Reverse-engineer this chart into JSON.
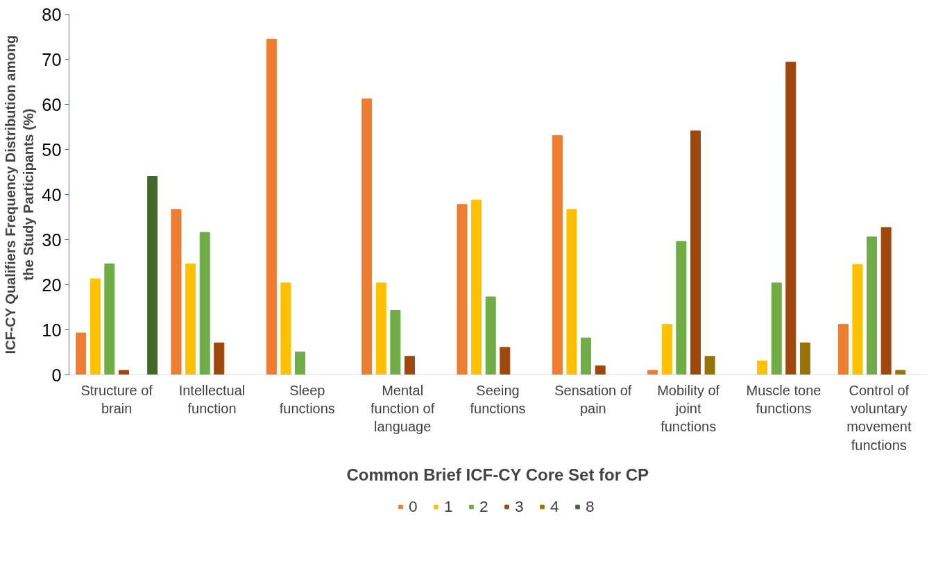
{
  "chart_data": {
    "type": "bar",
    "xlabel": "Common Brief ICF-CY Core Set for CP",
    "ylabel": "ICF-CY Qualifiers Frequency Distribution among the Study Participants (%)",
    "categories": [
      "Structure of brain",
      "Intellectual function",
      "Sleep functions",
      "Mental function of language",
      "Seeing functions",
      "Sensation of pain",
      "Mobility of joint functions",
      "Muscle tone functions",
      "Control of voluntary movement functions"
    ],
    "series": [
      {
        "name": "0",
        "color": "#ed7d31",
        "values": [
          9.3,
          36.7,
          74.5,
          61.2,
          37.8,
          53.1,
          1.0,
          null,
          11.2
        ]
      },
      {
        "name": "1",
        "color": "#ffc000",
        "values": [
          21.3,
          24.6,
          20.4,
          20.4,
          38.8,
          36.7,
          11.2,
          3.1,
          24.5
        ]
      },
      {
        "name": "2",
        "color": "#70ad47",
        "values": [
          24.6,
          31.6,
          5.1,
          14.3,
          17.3,
          8.2,
          29.6,
          20.4,
          30.6
        ]
      },
      {
        "name": "3",
        "color": "#9e480e",
        "values": [
          1.0,
          7.1,
          null,
          4.1,
          6.1,
          2.0,
          54.1,
          69.4,
          32.7
        ]
      },
      {
        "name": "4",
        "color": "#997300",
        "values": [
          null,
          null,
          null,
          null,
          null,
          null,
          4.1,
          7.1,
          1.0
        ]
      },
      {
        "name": "8",
        "color": "#43682b",
        "values": [
          44.0,
          null,
          null,
          null,
          null,
          null,
          null,
          null,
          null
        ]
      }
    ],
    "ylim": [
      0,
      80
    ],
    "yticks": [
      0,
      10,
      20,
      30,
      40,
      50,
      60,
      70,
      80
    ],
    "grid": false,
    "legend": "bottom"
  }
}
